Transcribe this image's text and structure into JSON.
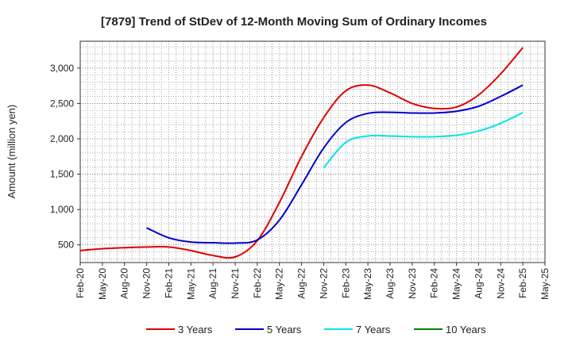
{
  "chart_data": {
    "type": "line",
    "title": "[7879]  Trend of StDev of 12-Month Moving Sum of Ordinary Incomes",
    "xlabel": "",
    "ylabel": "Amount (million yen)",
    "ylim": [
      250,
      3380
    ],
    "yticks": [
      500,
      1000,
      1500,
      2000,
      2500,
      3000
    ],
    "ytick_labels": [
      "500",
      "1,000",
      "1,500",
      "2,000",
      "2,500",
      "3,000"
    ],
    "categories": [
      "Feb-20",
      "May-20",
      "Aug-20",
      "Nov-20",
      "Feb-21",
      "May-21",
      "Aug-21",
      "Nov-21",
      "Feb-22",
      "May-22",
      "Aug-22",
      "Nov-22",
      "Feb-23",
      "May-23",
      "Aug-23",
      "Nov-23",
      "Feb-24",
      "May-24",
      "Aug-24",
      "Nov-24",
      "Feb-25",
      "May-25"
    ],
    "grid": true,
    "legend_position": "bottom",
    "series": [
      {
        "name": "3 Years",
        "color": "#e00000",
        "values": [
          420,
          445,
          460,
          470,
          470,
          420,
          350,
          330,
          560,
          1100,
          1750,
          2300,
          2680,
          2760,
          2650,
          2500,
          2430,
          2450,
          2620,
          2920,
          3290,
          null
        ]
      },
      {
        "name": "5 Years",
        "color": "#0000cc",
        "values": [
          null,
          null,
          null,
          740,
          600,
          540,
          530,
          525,
          570,
          850,
          1350,
          1870,
          2230,
          2360,
          2375,
          2365,
          2365,
          2390,
          2460,
          2600,
          2760,
          null
        ]
      },
      {
        "name": "7 Years",
        "color": "#00e6e6",
        "values": [
          null,
          null,
          null,
          null,
          null,
          null,
          null,
          null,
          null,
          null,
          null,
          1590,
          1950,
          2040,
          2040,
          2030,
          2030,
          2050,
          2110,
          2220,
          2370,
          null
        ]
      },
      {
        "name": "10 Years",
        "color": "#008000",
        "values": [
          null,
          null,
          null,
          null,
          null,
          null,
          null,
          null,
          null,
          null,
          null,
          null,
          null,
          null,
          null,
          null,
          null,
          null,
          null,
          null,
          null,
          null
        ]
      }
    ]
  }
}
